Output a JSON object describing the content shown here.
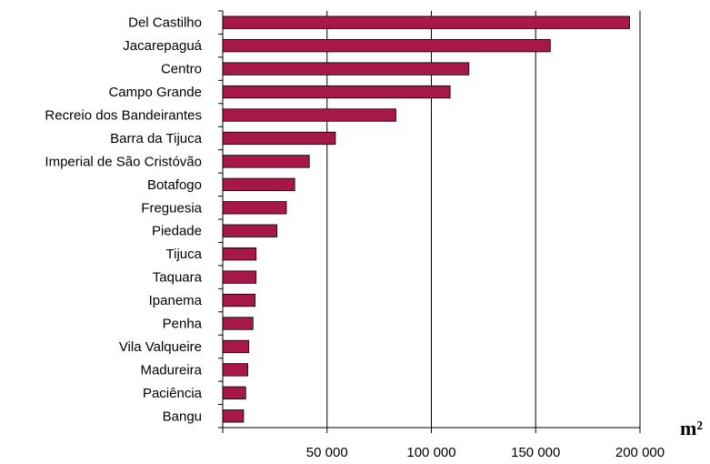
{
  "chart_data": {
    "type": "bar",
    "orientation": "horizontal",
    "categories": [
      "Del Castilho",
      "Jacarepaguá",
      "Centro",
      "Campo Grande",
      "Recreio dos Bandeirantes",
      "Barra da Tijuca",
      "Imperial de São Cristóvão",
      "Botafogo",
      "Freguesia",
      "Piedade",
      "Tijuca",
      "Taquara",
      "Ipanema",
      "Penha",
      "Vila Valqueire",
      "Madureira",
      "Paciência",
      "Bangu"
    ],
    "values": [
      195000,
      157000,
      118000,
      109000,
      83000,
      54000,
      41500,
      34500,
      30500,
      26000,
      16000,
      16000,
      15500,
      14500,
      12500,
      12000,
      11000,
      10000
    ],
    "xlim": [
      0,
      200000
    ],
    "xticks": [
      0,
      50000,
      100000,
      150000,
      200000
    ],
    "xtick_labels": [
      "",
      "50 000",
      "100 000",
      "150 000",
      "200 000"
    ],
    "xlabel": "m²",
    "grid": "vertical",
    "bar_color": "#a8174a",
    "title": "",
    "ylabel": ""
  }
}
